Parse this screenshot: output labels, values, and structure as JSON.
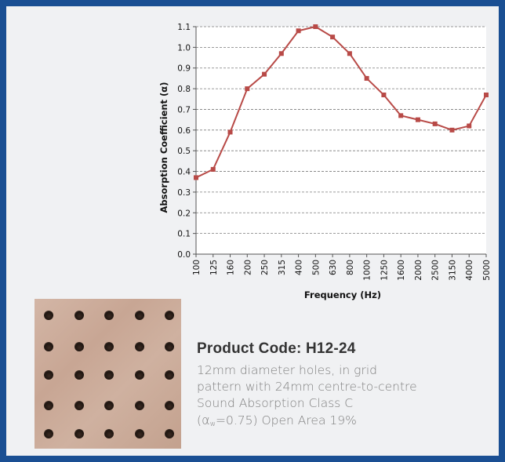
{
  "chart_data": {
    "type": "line",
    "title": "",
    "xlabel": "Frequency (Hz)",
    "ylabel": "Absorption Coefficient  (α)",
    "categories": [
      "100",
      "125",
      "160",
      "200",
      "250",
      "315",
      "400",
      "500",
      "630",
      "800",
      "1000",
      "1250",
      "1600",
      "2000",
      "2500",
      "3150",
      "4000",
      "5000"
    ],
    "series": [
      {
        "values": [
          0.37,
          0.41,
          0.59,
          0.8,
          0.87,
          0.97,
          1.08,
          1.1,
          1.05,
          0.97,
          0.85,
          0.77,
          0.67,
          0.65,
          0.63,
          0.6,
          0.62,
          0.77
        ]
      }
    ],
    "ylim": [
      0.0,
      1.1
    ],
    "yticks": [
      "0.0",
      "0.1",
      "0.2",
      "0.3",
      "0.4",
      "0.5",
      "0.6",
      "0.7",
      "0.8",
      "0.9",
      "1.0",
      "1.1"
    ],
    "grid": true,
    "line_color": "#b84a47",
    "marker_color": "#b84a47"
  },
  "product": {
    "code_label": "Product Code: H12-24",
    "line1": "12mm diameter holes, in grid",
    "line2": "pattern with 24mm centre-to-centre",
    "line3": "Sound Absorption Class C",
    "line4_open": "(",
    "alpha_symbol": "α",
    "alpha_sub": "w",
    "line4_value": "=0.75) Open Area 19%"
  },
  "colors": {
    "border": "#1a4f93",
    "panel": "#f0f1f3"
  }
}
